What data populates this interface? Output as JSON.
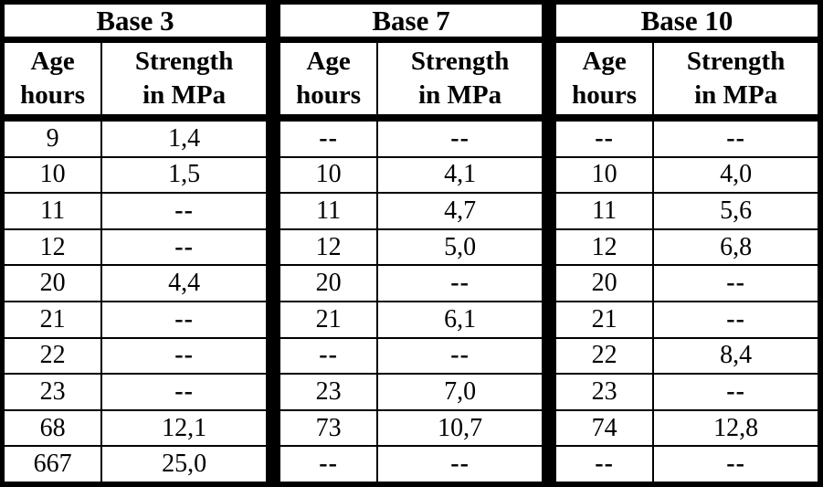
{
  "board": {
    "background_color": "#000000",
    "cell_background_color": "#ffffff",
    "text_color": "#000000"
  },
  "tables": [
    {
      "title": "Base 3",
      "col_age_line1": "Age",
      "col_age_line2": "hours",
      "col_strength_line1": "Strength",
      "col_strength_line2": "in MPa",
      "rows": [
        {
          "age": "9",
          "strength": "1,4"
        },
        {
          "age": "10",
          "strength": "1,5"
        },
        {
          "age": "11",
          "strength": "--"
        },
        {
          "age": "12",
          "strength": "--"
        },
        {
          "age": "20",
          "strength": "4,4"
        },
        {
          "age": "21",
          "strength": "--"
        },
        {
          "age": "22",
          "strength": "--"
        },
        {
          "age": "23",
          "strength": "--"
        },
        {
          "age": "68",
          "strength": "12,1"
        },
        {
          "age": "667",
          "strength": "25,0"
        }
      ]
    },
    {
      "title": "Base 7",
      "col_age_line1": "Age",
      "col_age_line2": "hours",
      "col_strength_line1": "Strength",
      "col_strength_line2": "in MPa",
      "rows": [
        {
          "age": "--",
          "strength": "--"
        },
        {
          "age": "10",
          "strength": "4,1"
        },
        {
          "age": "11",
          "strength": "4,7"
        },
        {
          "age": "12",
          "strength": "5,0"
        },
        {
          "age": "20",
          "strength": "--"
        },
        {
          "age": "21",
          "strength": "6,1"
        },
        {
          "age": "--",
          "strength": "--"
        },
        {
          "age": "23",
          "strength": "7,0"
        },
        {
          "age": "73",
          "strength": "10,7"
        },
        {
          "age": "--",
          "strength": "--"
        }
      ]
    },
    {
      "title": "Base 10",
      "col_age_line1": "Age",
      "col_age_line2": "hours",
      "col_strength_line1": "Strength",
      "col_strength_line2": "in MPa",
      "rows": [
        {
          "age": "--",
          "strength": "--"
        },
        {
          "age": "10",
          "strength": "4,0"
        },
        {
          "age": "11",
          "strength": "5,6"
        },
        {
          "age": "12",
          "strength": "6,8"
        },
        {
          "age": "20",
          "strength": "--"
        },
        {
          "age": "21",
          "strength": "--"
        },
        {
          "age": "22",
          "strength": "8,4"
        },
        {
          "age": "23",
          "strength": "--"
        },
        {
          "age": "74",
          "strength": "12,8"
        },
        {
          "age": "--",
          "strength": "--"
        }
      ]
    }
  ]
}
